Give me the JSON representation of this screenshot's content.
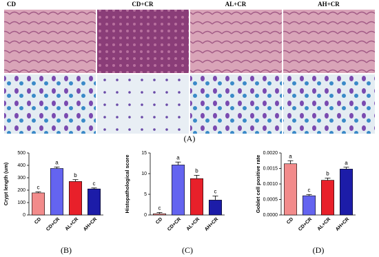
{
  "figure": {
    "image_labels": [
      "CD",
      "CD+CR",
      "AL+CR",
      "AH+CR"
    ],
    "image_panel": "(A)"
  },
  "chart_data": [
    {
      "type": "bar",
      "panel": "(B)",
      "y_label": "Crypt length (um)",
      "categories": [
        "CD",
        "CD+CR",
        "AL+CR",
        "AH+CR"
      ],
      "values": [
        178,
        375,
        270,
        210
      ],
      "errors": [
        8,
        12,
        15,
        8
      ],
      "annotations": [
        "c",
        "a",
        "b",
        "c"
      ],
      "colors": [
        "#f28b8b",
        "#6464f0",
        "#e8202a",
        "#1c1ca8"
      ],
      "ylim": [
        0,
        500
      ],
      "yticks": [
        0,
        100,
        200,
        300,
        400,
        500
      ]
    },
    {
      "type": "bar",
      "panel": "(C)",
      "y_label": "Histopathological score",
      "categories": [
        "CD",
        "CD+CR",
        "AL+CR",
        "AH+CR"
      ],
      "values": [
        0.3,
        12.1,
        8.8,
        3.6
      ],
      "errors": [
        0.3,
        0.7,
        0.8,
        1.0
      ],
      "annotations": [
        "c",
        "a",
        "b",
        "c"
      ],
      "colors": [
        "#f28b8b",
        "#6464f0",
        "#e8202a",
        "#1c1ca8"
      ],
      "ylim": [
        0,
        15
      ],
      "yticks": [
        0,
        5,
        10,
        15
      ]
    },
    {
      "type": "bar",
      "panel": "(D)",
      "y_label": "Goblet cell positive rate",
      "categories": [
        "CD",
        "CD+CR",
        "AL+CR",
        "AH+CR"
      ],
      "values": [
        0.00165,
        0.00062,
        0.00112,
        0.00148
      ],
      "errors": [
        0.0001,
        4e-05,
        7e-05,
        6e-05
      ],
      "annotations": [
        "a",
        "c",
        "b",
        "a"
      ],
      "colors": [
        "#f28b8b",
        "#6464f0",
        "#e8202a",
        "#1c1ca8"
      ],
      "ylim": [
        0,
        0.002
      ],
      "yticks": [
        {
          "value": 0,
          "label": "0.0000"
        },
        {
          "value": 0.0005,
          "label": "0.0005"
        },
        {
          "value": 0.001,
          "label": "0.0010"
        },
        {
          "value": 0.0015,
          "label": "0.0015"
        },
        {
          "value": 0.002,
          "label": "0.0020"
        }
      ]
    }
  ]
}
